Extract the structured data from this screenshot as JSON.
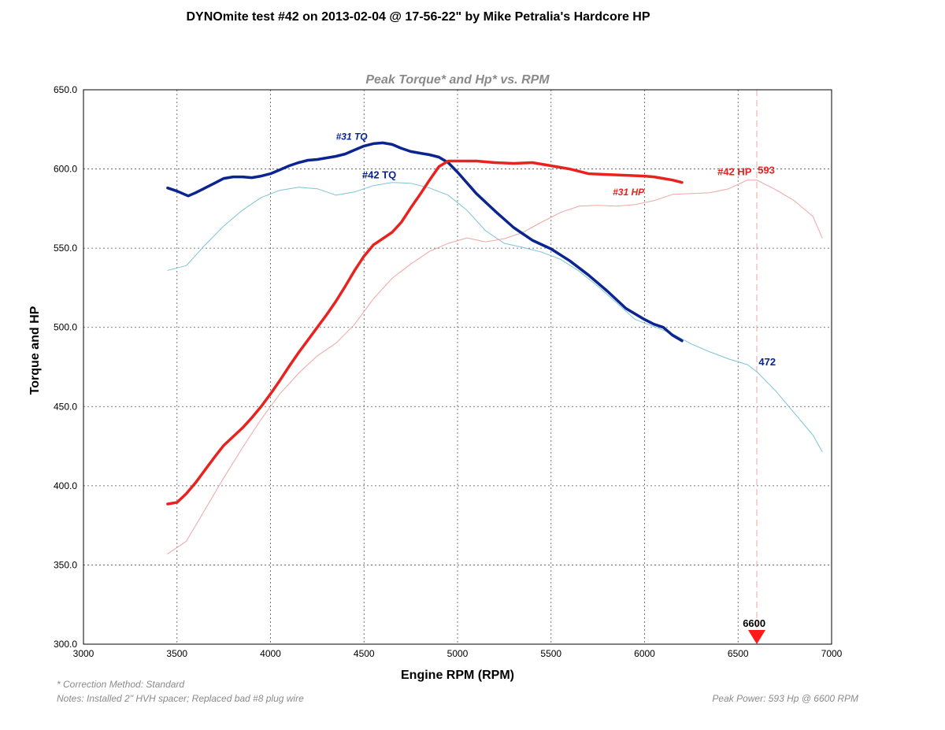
{
  "chart_data": {
    "type": "line",
    "title": "DYNOmite test   #42 on 2013-02-04 @ 17-56-22\"  by Mike Petralia's Hardcore HP",
    "subtitle": "Peak Torque* and Hp* vs. RPM",
    "xlabel": "Engine RPM (RPM)",
    "ylabel": "Torque and HP",
    "xlim": [
      3000,
      7000
    ],
    "ylim": [
      300,
      650
    ],
    "x_ticks": [
      "3000",
      "3500",
      "4000",
      "4500",
      "5000",
      "5500",
      "6000",
      "6500",
      "7000"
    ],
    "y_ticks": [
      "300.0",
      "350.0",
      "400.0",
      "450.0",
      "500.0",
      "550.0",
      "600.0",
      "650.0"
    ],
    "grid": true,
    "series": [
      {
        "name": "#31 TQ",
        "color": "#0b2490",
        "style": "thick",
        "x": [
          3450,
          3500,
          3560,
          3600,
          3650,
          3700,
          3750,
          3800,
          3850,
          3900,
          3950,
          4000,
          4050,
          4100,
          4150,
          4200,
          4250,
          4300,
          4350,
          4400,
          4450,
          4500,
          4550,
          4600,
          4650,
          4700,
          4750,
          4800,
          4850,
          4900,
          4950,
          5000,
          5100,
          5200,
          5300,
          5400,
          5500,
          5600,
          5700,
          5800,
          5900,
          6000,
          6050,
          6100,
          6150,
          6200
        ],
        "y": [
          588,
          586,
          583,
          585,
          588,
          591,
          594,
          595,
          595,
          594.5,
          595.5,
          597,
          599.5,
          602,
          604,
          605.5,
          606,
          607,
          608,
          609.5,
          612,
          614.5,
          616,
          616.5,
          615.5,
          613,
          611,
          610,
          609,
          607.5,
          604,
          598,
          584.5,
          573.5,
          563,
          555,
          549.5,
          542,
          533,
          523,
          512,
          505,
          502,
          500,
          495,
          491.5
        ]
      },
      {
        "name": "#42 TQ",
        "color": "#7cc3d6",
        "style": "thin",
        "x": [
          3450,
          3550,
          3650,
          3750,
          3850,
          3950,
          4050,
          4150,
          4250,
          4350,
          4450,
          4550,
          4650,
          4750,
          4850,
          4950,
          5050,
          5150,
          5250,
          5350,
          5450,
          5550,
          5650,
          5750,
          5850,
          5950,
          6050,
          6150,
          6250,
          6350,
          6450,
          6550,
          6600,
          6700,
          6800,
          6900,
          6950
        ],
        "y": [
          536,
          539,
          552,
          564,
          574,
          582,
          586.5,
          588.5,
          587.5,
          583.5,
          585.5,
          589.5,
          591.5,
          591,
          588,
          583.5,
          574,
          561,
          553,
          550.5,
          547.5,
          543,
          535.5,
          526,
          515.5,
          505,
          500.5,
          496,
          489.5,
          484.5,
          480,
          476.5,
          472,
          460,
          446,
          432,
          421.5
        ]
      },
      {
        "name": "#31 HP",
        "color": "#e8231f",
        "style": "thick",
        "x": [
          3450,
          3500,
          3550,
          3600,
          3650,
          3700,
          3750,
          3800,
          3850,
          3900,
          3950,
          4000,
          4050,
          4100,
          4150,
          4200,
          4250,
          4300,
          4350,
          4400,
          4450,
          4500,
          4550,
          4600,
          4650,
          4700,
          4750,
          4800,
          4850,
          4900,
          4950,
          5000,
          5100,
          5200,
          5300,
          5400,
          5500,
          5600,
          5700,
          5800,
          5900,
          6000,
          6050,
          6100,
          6150,
          6200
        ],
        "y": [
          388.5,
          389.5,
          395,
          402,
          410,
          418,
          425.5,
          431,
          436.5,
          443,
          450,
          458,
          466.5,
          475.5,
          484,
          492,
          500,
          508,
          516.5,
          526,
          536,
          545,
          552,
          556,
          560,
          566.5,
          575.5,
          584,
          593,
          601.5,
          605,
          605,
          605,
          604,
          603.5,
          604,
          602,
          600,
          597,
          596.5,
          596,
          595.5,
          595,
          594,
          593,
          591.5
        ]
      },
      {
        "name": "#42 HP",
        "color": "#f0a6a2",
        "style": "thin",
        "x": [
          3450,
          3550,
          3650,
          3750,
          3850,
          3950,
          4050,
          4150,
          4250,
          4350,
          4450,
          4550,
          4650,
          4750,
          4850,
          4950,
          5050,
          5150,
          5250,
          5350,
          5450,
          5550,
          5650,
          5750,
          5850,
          5950,
          6050,
          6150,
          6250,
          6350,
          6450,
          6550,
          6600,
          6700,
          6800,
          6900,
          6950
        ],
        "y": [
          357,
          365,
          385,
          405,
          424,
          442,
          458,
          471,
          482,
          490,
          502,
          518,
          531,
          540,
          548,
          553,
          556.5,
          554,
          556,
          560,
          566.5,
          572.5,
          576.5,
          577,
          576.5,
          577.5,
          580,
          584,
          584.5,
          585,
          587.5,
          593,
          593,
          587,
          580,
          570,
          556.5
        ]
      }
    ],
    "annotations": {
      "tq31": {
        "text": "#31 TQ",
        "color": "#0b2490",
        "x": 4350,
        "y": 618.5
      },
      "tq42": {
        "text": "#42 TQ",
        "color": "#0b2490",
        "x": 4490,
        "y": 594
      },
      "hp31": {
        "text": "#31 HP",
        "color": "#e8231f",
        "x": 5830,
        "y": 583.5
      },
      "hp42": {
        "text": "#42 HP",
        "color": "#e8231f",
        "x": 6390,
        "y": 596
      },
      "peak_hp": {
        "text": "593",
        "color": "#e8231f",
        "x": 6605,
        "y": 597
      },
      "tq_value": {
        "text": "472",
        "color": "#0b2490",
        "x": 6610,
        "y": 476
      },
      "rpm_marker": {
        "text": "6600",
        "color": "#000000",
        "x": 6525,
        "y": 311
      }
    },
    "marker": {
      "x": 6600,
      "color": "#ff1a1a"
    },
    "footnotes": {
      "correction": "* Correction Method: Standard",
      "notes": "Notes: Installed 2\" HVH spacer; Replaced bad #8 plug wire",
      "peak_power": "Peak Power: 593 Hp @ 6600 RPM"
    }
  }
}
